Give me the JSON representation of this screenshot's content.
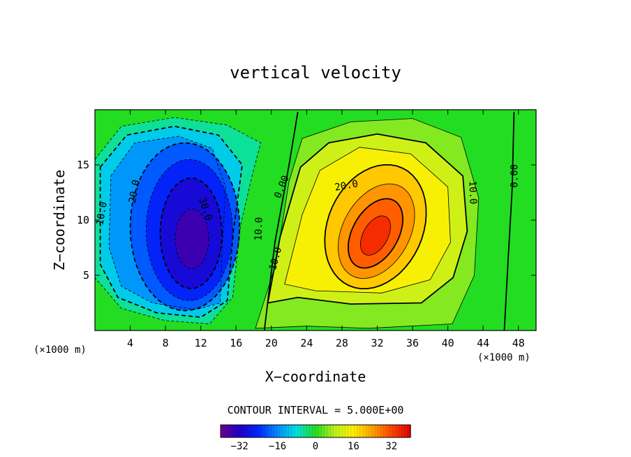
{
  "chart_data": {
    "type": "heatmap",
    "subtype": "filled-contour",
    "title": "vertical velocity",
    "xlabel": "X−coordinate",
    "ylabel": "Z−coordinate",
    "x_unit_left": "(×1000 m)",
    "x_unit_right": "(×1000 m)",
    "xlim": [
      0,
      50
    ],
    "ylim": [
      0,
      20
    ],
    "x_ticks": [
      4,
      8,
      12,
      16,
      20,
      24,
      28,
      32,
      36,
      40,
      44,
      48
    ],
    "x_tick_labels": [
      "4",
      "8",
      "12",
      "16",
      "20",
      "24",
      "28",
      "32",
      "36",
      "40",
      "44",
      "48"
    ],
    "y_ticks": [
      5,
      10,
      15
    ],
    "y_tick_labels": [
      "5",
      "10",
      "15"
    ],
    "contour_interval_text": "CONTOUR INTERVAL = 5.000E+00",
    "contour_interval": 5.0,
    "field_range": [
      -40,
      40
    ],
    "background_value": 0,
    "features": [
      {
        "name": "downdraft",
        "center": [
          11,
          8.3
        ],
        "peak": -38
      },
      {
        "name": "updraft",
        "center": [
          31.8,
          8.6
        ],
        "peak": 38
      }
    ],
    "contour_labels": [
      {
        "text": "10.0",
        "x": 0.8,
        "y": 10.6,
        "angle": -80
      },
      {
        "text": "20.0",
        "x": 4.5,
        "y": 12.6,
        "angle": -80
      },
      {
        "text": "30.0",
        "x": 12.5,
        "y": 11.0,
        "angle": 72
      },
      {
        "text": "10.0",
        "x": 18.6,
        "y": 9.2,
        "angle": -88
      },
      {
        "text": "10.0",
        "x": 20.5,
        "y": 6.5,
        "angle": -75
      },
      {
        "text": "0.00",
        "x": 21.2,
        "y": 13.0,
        "angle": -68
      },
      {
        "text": "20.0",
        "x": 28.5,
        "y": 13.1,
        "angle": -10
      },
      {
        "text": "10.0",
        "x": 42.8,
        "y": 12.5,
        "angle": 88
      },
      {
        "text": "0.00",
        "x": 47.6,
        "y": 14.0,
        "angle": -90
      }
    ],
    "colorbar": {
      "range": [
        -40,
        40
      ],
      "ticks": [
        -32,
        -16,
        0,
        16,
        32
      ],
      "tick_labels": [
        "−32",
        "−16",
        "0",
        "16",
        "32"
      ]
    }
  }
}
